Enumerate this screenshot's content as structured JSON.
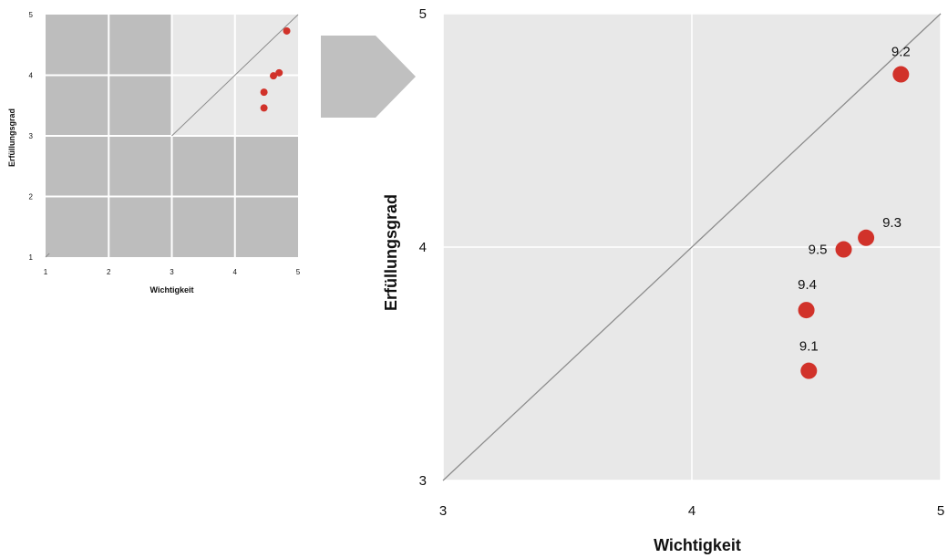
{
  "chart_data": [
    {
      "type": "scatter",
      "variant": "overview",
      "xlabel": "Wichtigkeit",
      "ylabel": "Erfüllungsgrad",
      "xlim": [
        1,
        5
      ],
      "ylim": [
        1,
        5
      ],
      "x_ticks": [
        "1",
        "2",
        "3",
        "4",
        "5"
      ],
      "y_ticks": [
        "1",
        "2",
        "3",
        "4",
        "5"
      ],
      "grid": true,
      "diagonal": true,
      "highlight_region": {
        "x": [
          3,
          5
        ],
        "y": [
          3,
          5
        ]
      },
      "points": [
        {
          "x": 4.82,
          "y": 4.73
        },
        {
          "x": 4.7,
          "y": 4.04
        },
        {
          "x": 4.61,
          "y": 3.99
        },
        {
          "x": 4.46,
          "y": 3.72
        },
        {
          "x": 4.46,
          "y": 3.46
        }
      ]
    },
    {
      "type": "scatter",
      "variant": "zoom",
      "xlabel": "Wichtigkeit",
      "ylabel": "Erfüllungsgrad",
      "xlim": [
        3,
        5
      ],
      "ylim": [
        3,
        5
      ],
      "x_ticks": [
        "3",
        "4",
        "5"
      ],
      "y_ticks": [
        "3",
        "4",
        "5"
      ],
      "grid": true,
      "diagonal": true,
      "points": [
        {
          "label": "9.2",
          "x": 4.84,
          "y": 4.74
        },
        {
          "label": "9.3",
          "x": 4.7,
          "y": 4.04
        },
        {
          "label": "9.5",
          "x": 4.61,
          "y": 3.99
        },
        {
          "label": "9.4",
          "x": 4.46,
          "y": 3.73
        },
        {
          "label": "9.1",
          "x": 4.47,
          "y": 3.47
        }
      ]
    }
  ],
  "colors": {
    "point": "#d1322a",
    "panel_bg": "#e8e8e8",
    "dim_region": "#bdbdbd",
    "grid": "#ffffff",
    "diagonal": "#8c8c8c",
    "arrow": "#c0c0c0"
  },
  "icons": {
    "arrow": "zoom-arrow-icon"
  }
}
